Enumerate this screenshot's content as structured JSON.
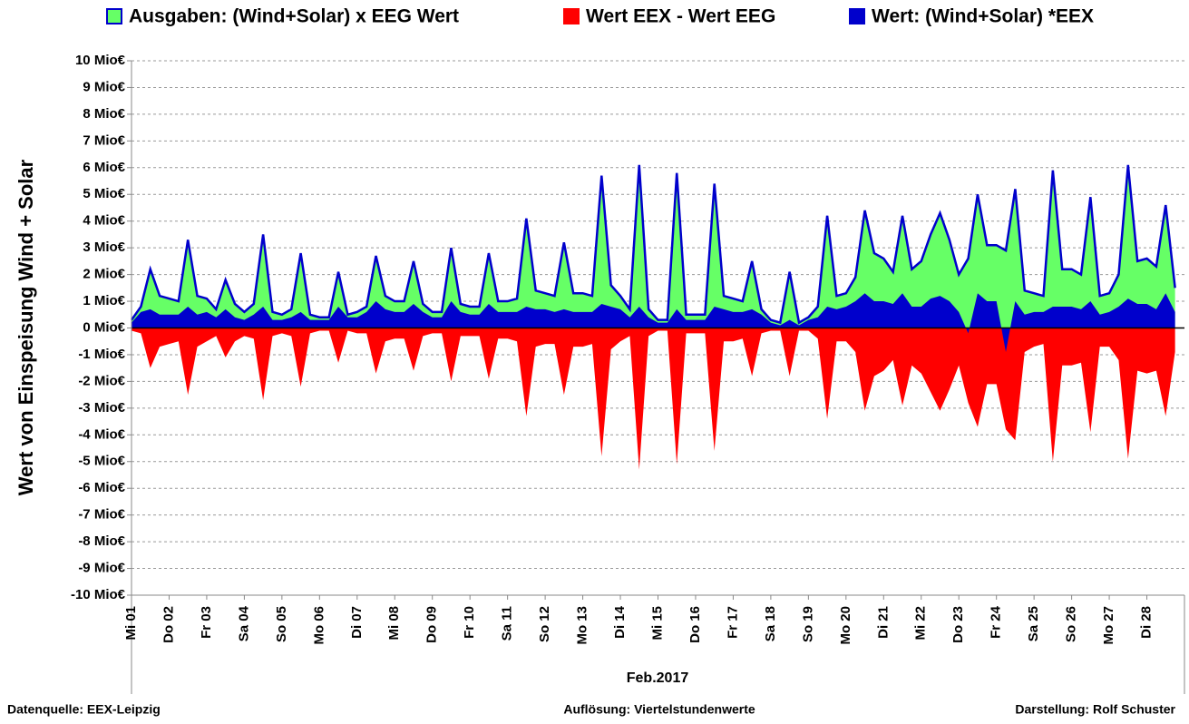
{
  "chart_data": {
    "type": "area",
    "y_label": "Wert von Einspeisung Wind + Solar",
    "x_label": "Feb.2017",
    "footer": [
      "Datenquelle: EEX-Leipzig",
      "Auflösung: Viertelstundenwerte",
      "Darstellung: Rolf Schuster"
    ],
    "categories": [
      "Mi 01",
      null,
      null,
      null,
      "Do 02",
      null,
      null,
      null,
      "Fr 03",
      null,
      null,
      null,
      "Sa 04",
      null,
      null,
      null,
      "So 05",
      null,
      null,
      null,
      "Mo 06",
      null,
      null,
      null,
      "Di 07",
      null,
      null,
      null,
      "Mi 08",
      null,
      null,
      null,
      "Do 09",
      null,
      null,
      null,
      "Fr 10",
      null,
      null,
      null,
      "Sa 11",
      null,
      null,
      null,
      "So 12",
      null,
      null,
      null,
      "Mo 13",
      null,
      null,
      null,
      "Di 14",
      null,
      null,
      null,
      "Mi 15",
      null,
      null,
      null,
      "Do 16",
      null,
      null,
      null,
      "Fr 17",
      null,
      null,
      null,
      "Sa 18",
      null,
      null,
      null,
      "So 19",
      null,
      null,
      null,
      "Mo 20",
      null,
      null,
      null,
      "Di 21",
      null,
      null,
      null,
      "Mi 22",
      null,
      null,
      null,
      "Do 23",
      null,
      null,
      null,
      "Fr 24",
      null,
      null,
      null,
      "Sa 25",
      null,
      null,
      null,
      "So 26",
      null,
      null,
      null,
      "Mo 27",
      null,
      null,
      null,
      "Di 28",
      null,
      null,
      null
    ],
    "series": [
      {
        "name": "Ausgaben: (Wind+Solar) x EEG Wert",
        "color": "#66ff66",
        "edgecolor": "#0000cc",
        "values": [
          0.3,
          0.8,
          2.2,
          1.2,
          1.1,
          1.0,
          3.3,
          1.2,
          1.1,
          0.7,
          1.8,
          0.9,
          0.6,
          0.9,
          3.5,
          0.6,
          0.5,
          0.7,
          2.8,
          0.5,
          0.4,
          0.4,
          2.1,
          0.5,
          0.6,
          0.8,
          2.7,
          1.2,
          1.0,
          1.0,
          2.5,
          0.9,
          0.6,
          0.6,
          3.0,
          0.9,
          0.8,
          0.8,
          2.8,
          1.0,
          1.0,
          1.1,
          4.1,
          1.4,
          1.3,
          1.2,
          3.2,
          1.3,
          1.3,
          1.2,
          5.7,
          1.6,
          1.2,
          0.7,
          6.1,
          0.7,
          0.3,
          0.3,
          5.8,
          0.5,
          0.5,
          0.5,
          5.4,
          1.2,
          1.1,
          1.0,
          2.5,
          0.7,
          0.3,
          0.2,
          2.1,
          0.2,
          0.4,
          0.8,
          4.2,
          1.2,
          1.3,
          1.9,
          4.4,
          2.8,
          2.6,
          2.1,
          4.2,
          2.2,
          2.5,
          3.5,
          4.3,
          3.3,
          2.0,
          2.6,
          5.0,
          3.1,
          3.1,
          2.9,
          5.2,
          1.4,
          1.3,
          1.2,
          5.9,
          2.2,
          2.2,
          2.0,
          4.9,
          1.2,
          1.3,
          2.0,
          6.1,
          2.5,
          2.6,
          2.3,
          4.6,
          1.5
        ]
      },
      {
        "name": "Wert EEX - Wert EEG",
        "color": "#ff0000",
        "values": [
          -0.1,
          -0.2,
          -1.5,
          -0.7,
          -0.6,
          -0.5,
          -2.5,
          -0.7,
          -0.5,
          -0.3,
          -1.1,
          -0.5,
          -0.3,
          -0.4,
          -2.7,
          -0.3,
          -0.2,
          -0.3,
          -2.2,
          -0.2,
          -0.1,
          -0.1,
          -1.3,
          -0.1,
          -0.2,
          -0.2,
          -1.7,
          -0.5,
          -0.4,
          -0.4,
          -1.6,
          -0.3,
          -0.2,
          -0.2,
          -2.0,
          -0.3,
          -0.3,
          -0.3,
          -1.9,
          -0.4,
          -0.4,
          -0.5,
          -3.3,
          -0.7,
          -0.6,
          -0.6,
          -2.5,
          -0.7,
          -0.7,
          -0.6,
          -4.8,
          -0.8,
          -0.5,
          -0.3,
          -5.3,
          -0.3,
          -0.1,
          -0.1,
          -5.1,
          -0.2,
          -0.2,
          -0.2,
          -4.6,
          -0.5,
          -0.5,
          -0.4,
          -1.8,
          -0.2,
          -0.1,
          -0.1,
          -1.8,
          -0.1,
          -0.1,
          -0.4,
          -3.4,
          -0.5,
          -0.5,
          -0.9,
          -3.1,
          -1.8,
          -1.6,
          -1.2,
          -2.9,
          -1.4,
          -1.7,
          -2.4,
          -3.1,
          -2.3,
          -1.4,
          -2.8,
          -3.7,
          -2.1,
          -2.1,
          -3.8,
          -4.2,
          -0.9,
          -0.7,
          -0.6,
          -5.0,
          -1.4,
          -1.4,
          -1.3,
          -3.9,
          -0.7,
          -0.7,
          -1.2,
          -4.9,
          -1.6,
          -1.7,
          -1.6,
          -3.3,
          -0.9
        ]
      },
      {
        "name": "Wert: (Wind+Solar) *EEX",
        "color": "#0000cc",
        "values": [
          0.2,
          0.6,
          0.7,
          0.5,
          0.5,
          0.5,
          0.8,
          0.5,
          0.6,
          0.4,
          0.7,
          0.4,
          0.3,
          0.5,
          0.8,
          0.3,
          0.3,
          0.4,
          0.6,
          0.3,
          0.3,
          0.3,
          0.8,
          0.4,
          0.4,
          0.6,
          1.0,
          0.7,
          0.6,
          0.6,
          0.9,
          0.6,
          0.4,
          0.4,
          1.0,
          0.6,
          0.5,
          0.5,
          0.9,
          0.6,
          0.6,
          0.6,
          0.8,
          0.7,
          0.7,
          0.6,
          0.7,
          0.6,
          0.6,
          0.6,
          0.9,
          0.8,
          0.7,
          0.4,
          0.8,
          0.4,
          0.2,
          0.2,
          0.7,
          0.3,
          0.3,
          0.3,
          0.8,
          0.7,
          0.6,
          0.6,
          0.7,
          0.5,
          0.2,
          0.1,
          0.3,
          0.1,
          0.3,
          0.4,
          0.8,
          0.7,
          0.8,
          1.0,
          1.3,
          1.0,
          1.0,
          0.9,
          1.3,
          0.8,
          0.8,
          1.1,
          1.2,
          1.0,
          0.6,
          -0.2,
          1.3,
          1.0,
          1.0,
          -0.9,
          1.0,
          0.5,
          0.6,
          0.6,
          0.8,
          0.8,
          0.8,
          0.7,
          1.0,
          0.5,
          0.6,
          0.8,
          1.1,
          0.9,
          0.9,
          0.7,
          1.3,
          0.6
        ]
      }
    ],
    "ylim": [
      -10,
      10
    ],
    "yticks": [
      {
        "value": -10,
        "label": "-10 Mio€"
      },
      {
        "value": -9,
        "label": "-9 Mio€"
      },
      {
        "value": -8,
        "label": "-8 Mio€"
      },
      {
        "value": -7,
        "label": "-7 Mio€"
      },
      {
        "value": -6,
        "label": "-6 Mio€"
      },
      {
        "value": -5,
        "label": "-5 Mio€"
      },
      {
        "value": -4,
        "label": "-4 Mio€"
      },
      {
        "value": -3,
        "label": "-3 Mio€"
      },
      {
        "value": -2,
        "label": "-2 Mio€"
      },
      {
        "value": -1,
        "label": "-1 Mio€"
      },
      {
        "value": 0,
        "label": "0 Mio€"
      },
      {
        "value": 1,
        "label": "1 Mio€"
      },
      {
        "value": 2,
        "label": "2 Mio€"
      },
      {
        "value": 3,
        "label": "3 Mio€"
      },
      {
        "value": 4,
        "label": "4 Mio€"
      },
      {
        "value": 5,
        "label": "5 Mio€"
      },
      {
        "value": 6,
        "label": "6 Mio€"
      },
      {
        "value": 7,
        "label": "7 Mio€"
      },
      {
        "value": 8,
        "label": "8 Mio€"
      },
      {
        "value": 9,
        "label": "9 Mio€"
      },
      {
        "value": 10,
        "label": "10 Mio€"
      }
    ],
    "negative_tick_color": "#ff0000",
    "grid": true,
    "legend": "top"
  }
}
